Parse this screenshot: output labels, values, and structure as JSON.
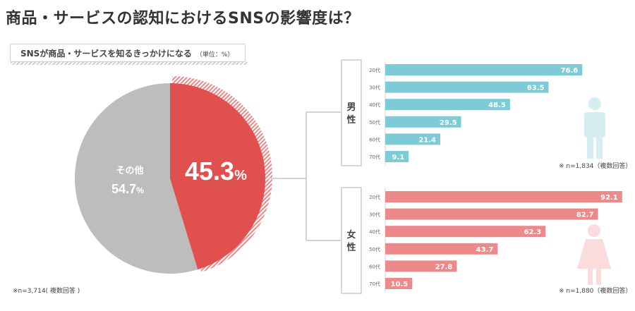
{
  "title": "商品・サービスの認知におけるSNSの影響度は？",
  "subtitle": "SNSが商品・サービスを知るきっかけになる",
  "unit": "（単位：%）",
  "colors": {
    "pie_main": "#e0504f",
    "pie_other": "#bdbdbd",
    "male_bar": "#7ecbd8",
    "female_bar": "#ec8a8a",
    "male_icon": "#d6eef2",
    "female_icon": "#fbdcdc"
  },
  "chart_data": [
    {
      "type": "pie",
      "slices": [
        {
          "label": "",
          "value": 45.3,
          "display": "45.3",
          "unit": "%"
        },
        {
          "label": "その他",
          "value": 54.7,
          "display": "54.7",
          "unit": "%"
        }
      ],
      "note": "※n=3,714( 複数回答 )"
    },
    {
      "type": "bar",
      "group": "男性",
      "categories": [
        "20代",
        "30代",
        "40代",
        "50代",
        "60代",
        "70代"
      ],
      "values": [
        76.6,
        63.5,
        48.5,
        29.5,
        21.4,
        9.1
      ],
      "labels": [
        "76.6",
        "63.5",
        "48.5",
        "29.5",
        "21.4",
        "9.1"
      ],
      "note": "※ n=1,834（複数回答）"
    },
    {
      "type": "bar",
      "group": "女性",
      "categories": [
        "20代",
        "30代",
        "40代",
        "50代",
        "60代",
        "70代"
      ],
      "values": [
        92.1,
        82.7,
        62.3,
        43.7,
        27.8,
        10.5
      ],
      "labels": [
        "92.1",
        "82.7",
        "62.3",
        "43.7",
        "27.8",
        "10.5"
      ],
      "note": "※ n=1,880（複数回答）"
    }
  ]
}
